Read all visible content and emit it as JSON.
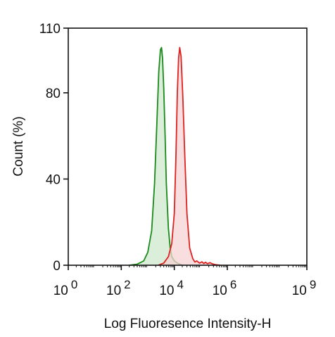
{
  "chart_data": {
    "type": "area",
    "title": "",
    "xlabel": "Log Fluoresence Intensity-H",
    "ylabel": "Count (%)",
    "x_scale": "log10",
    "xlim": [
      1,
      1000000000
    ],
    "ylim": [
      0,
      110
    ],
    "x_ticks": [
      {
        "value": 1,
        "base": "10",
        "exp": "0"
      },
      {
        "value": 100,
        "base": "10",
        "exp": "2"
      },
      {
        "value": 10000,
        "base": "10",
        "exp": "4"
      },
      {
        "value": 1000000,
        "base": "10",
        "exp": "6"
      },
      {
        "value": 1000000000,
        "base": "10",
        "exp": "9"
      }
    ],
    "y_ticks": [
      0,
      40,
      80,
      110
    ],
    "grid": false,
    "series": [
      {
        "color": "#1a8a1a",
        "fill": "#cde8cd",
        "x": [
          200,
          400,
          700,
          1000,
          1400,
          1800,
          2200,
          2600,
          3000,
          3300,
          3600,
          4000,
          4500,
          5000,
          6000,
          7000,
          8000,
          10000,
          13000,
          16000,
          20000
        ],
        "y": [
          0,
          0.5,
          2,
          6,
          16,
          38,
          66,
          90,
          100,
          101,
          96,
          82,
          60,
          38,
          17,
          8,
          4,
          2,
          1,
          0.5,
          0
        ]
      },
      {
        "color": "#dd2222",
        "fill": "#f6d3d3",
        "x": [
          2500,
          4000,
          6000,
          8000,
          10000,
          11500,
          13000,
          14500,
          16000,
          18000,
          21000,
          25000,
          30000,
          38000,
          50000,
          60000,
          70000,
          90000,
          110000,
          130000,
          150000,
          180000,
          220000,
          280000,
          350000,
          450000,
          550000
        ],
        "y": [
          0,
          1,
          4,
          10,
          24,
          50,
          80,
          96,
          101,
          97,
          78,
          50,
          24,
          8,
          3,
          1.5,
          2,
          1,
          1.6,
          0.8,
          1.4,
          0.7,
          1.2,
          0.6,
          0.3,
          0.1,
          0
        ]
      }
    ]
  }
}
